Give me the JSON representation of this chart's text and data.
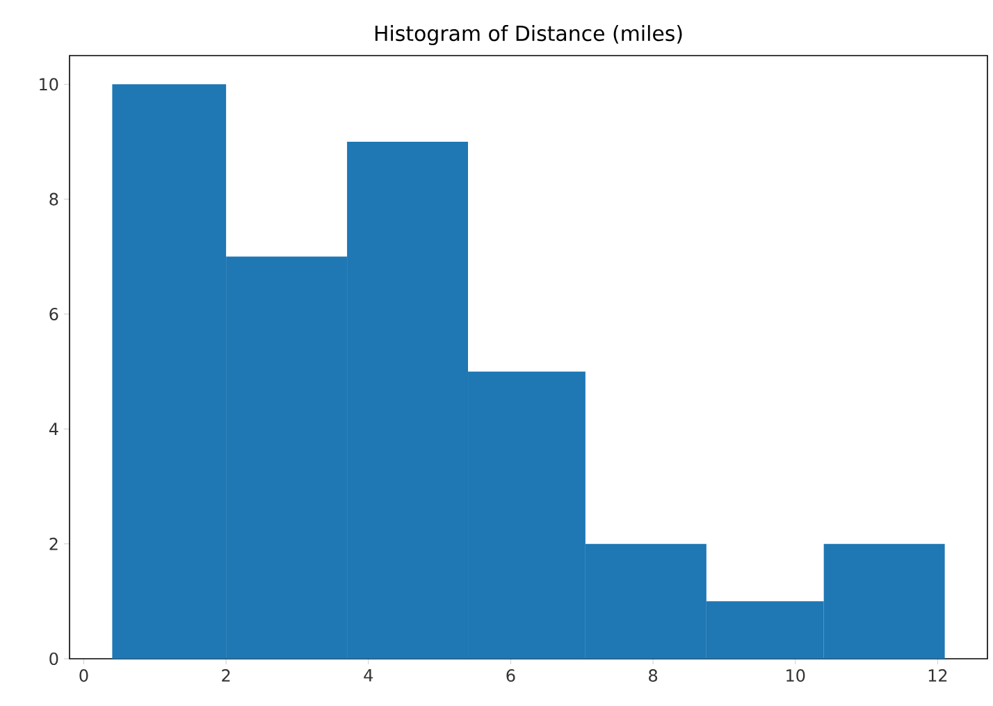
{
  "chart_data": {
    "type": "histogram",
    "title": "Histogram of Distance (miles)",
    "bins": [
      0.4,
      2.0,
      3.7,
      5.4,
      7.05,
      8.75,
      10.4,
      12.1
    ],
    "values": [
      10,
      7,
      9,
      5,
      2,
      1,
      2
    ],
    "color": "#1f77b4",
    "xlim": [
      -0.2,
      12.7
    ],
    "ylim": [
      0,
      10.5
    ],
    "xticks": [
      0,
      2,
      4,
      6,
      8,
      10,
      12
    ],
    "yticks": [
      0,
      2,
      4,
      6,
      8,
      10
    ],
    "grid": false
  }
}
